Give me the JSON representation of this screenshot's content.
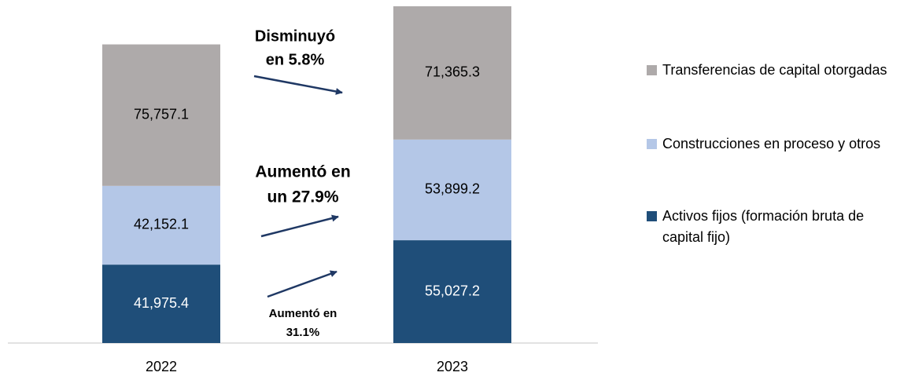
{
  "chart_data": {
    "type": "stacked_bar",
    "categories": [
      "2022",
      "2023"
    ],
    "series": [
      {
        "name": "Activos fijos (formación bruta de capital fijo)",
        "color": "#1f4e79",
        "label_color": "#ffffff",
        "values": [
          41975.4,
          55027.2
        ],
        "value_labels": [
          "41,975.4",
          "55,027.2"
        ]
      },
      {
        "name": "Construcciones en proceso y otros",
        "color": "#b4c7e7",
        "label_color": "#000000",
        "values": [
          42152.1,
          53899.2
        ],
        "value_labels": [
          "42,152.1",
          "53,899.2"
        ]
      },
      {
        "name": "Transferencias de capital otorgadas",
        "color": "#aeaaaa",
        "label_color": "#000000",
        "values": [
          75757.1,
          71365.3
        ],
        "value_labels": [
          "75,757.1",
          "71,365.3"
        ]
      }
    ],
    "annotations": [
      {
        "lines": [
          "Disminuyó",
          "en 5.8%"
        ]
      },
      {
        "lines": [
          "Aumentó en",
          "un 27.9%"
        ]
      },
      {
        "lines": [
          "Aumentó en",
          "31.1%"
        ]
      }
    ],
    "arrow_color": "#1f3864"
  }
}
